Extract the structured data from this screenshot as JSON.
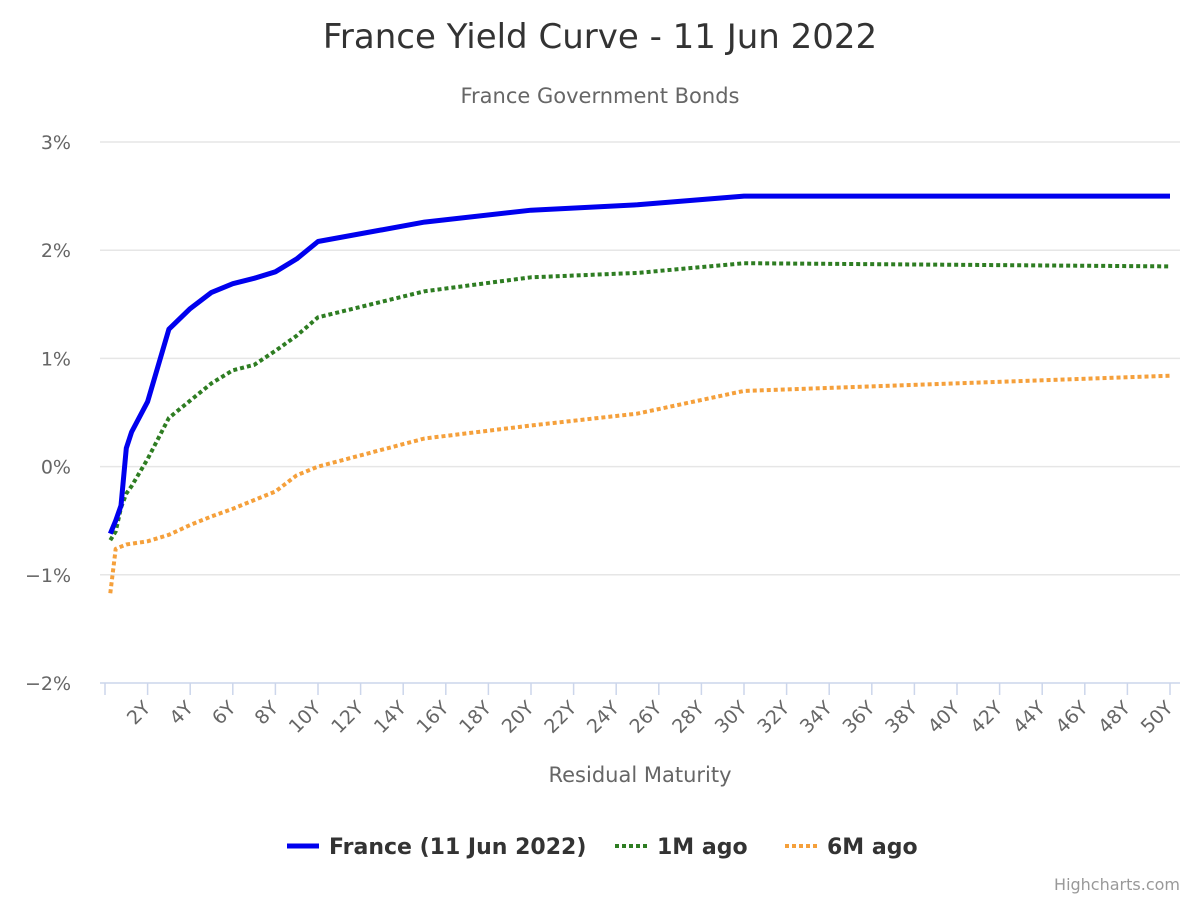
{
  "chart_data": {
    "type": "line",
    "title": "France Yield Curve - 11 Jun 2022",
    "subtitle": "France Government Bonds",
    "xlabel": "Residual Maturity",
    "ylabel": "",
    "xlim": [
      0,
      50
    ],
    "ylim": [
      -2,
      3
    ],
    "y_ticks": [
      -2,
      -1,
      0,
      1,
      2,
      3
    ],
    "y_tick_labels": [
      "−2%",
      "−1%",
      "0%",
      "1%",
      "2%",
      "3%"
    ],
    "x_ticks": [
      2,
      4,
      6,
      8,
      10,
      12,
      14,
      16,
      18,
      20,
      22,
      24,
      26,
      28,
      30,
      32,
      34,
      36,
      38,
      40,
      42,
      44,
      46,
      48,
      50
    ],
    "x_tick_labels": [
      "2Y",
      "4Y",
      "6Y",
      "8Y",
      "10Y",
      "12Y",
      "14Y",
      "16Y",
      "18Y",
      "20Y",
      "22Y",
      "24Y",
      "26Y",
      "28Y",
      "30Y",
      "32Y",
      "34Y",
      "36Y",
      "38Y",
      "40Y",
      "42Y",
      "44Y",
      "46Y",
      "48Y",
      "50Y"
    ],
    "grid": true,
    "legend_position": "bottom-center",
    "series": [
      {
        "name": "France (11 Jun 2022)",
        "color": "#0000ee",
        "style": "solid",
        "points": [
          [
            0.25,
            -0.62
          ],
          [
            0.5,
            -0.5
          ],
          [
            0.75,
            -0.36
          ],
          [
            1,
            0.17
          ],
          [
            1.25,
            0.32
          ],
          [
            2,
            0.6
          ],
          [
            3,
            1.27
          ],
          [
            4,
            1.46
          ],
          [
            5,
            1.61
          ],
          [
            6,
            1.69
          ],
          [
            7,
            1.74
          ],
          [
            8,
            1.8
          ],
          [
            9,
            1.92
          ],
          [
            10,
            2.08
          ],
          [
            15,
            2.26
          ],
          [
            20,
            2.37
          ],
          [
            25,
            2.42
          ],
          [
            30,
            2.5
          ],
          [
            50,
            2.5
          ]
        ]
      },
      {
        "name": "1M ago",
        "color": "#2e7d22",
        "style": "dotted",
        "points": [
          [
            0.25,
            -0.68
          ],
          [
            0.5,
            -0.6
          ],
          [
            0.75,
            -0.38
          ],
          [
            1,
            -0.25
          ],
          [
            1.25,
            -0.18
          ],
          [
            2,
            0.07
          ],
          [
            3,
            0.45
          ],
          [
            4,
            0.61
          ],
          [
            5,
            0.77
          ],
          [
            6,
            0.89
          ],
          [
            7,
            0.94
          ],
          [
            8,
            1.07
          ],
          [
            9,
            1.21
          ],
          [
            10,
            1.38
          ],
          [
            15,
            1.62
          ],
          [
            20,
            1.75
          ],
          [
            25,
            1.79
          ],
          [
            30,
            1.88
          ],
          [
            50,
            1.85
          ]
        ]
      },
      {
        "name": "6M ago",
        "color": "#f5a03b",
        "style": "dotted",
        "points": [
          [
            0.25,
            -1.17
          ],
          [
            0.5,
            -0.76
          ],
          [
            1,
            -0.72
          ],
          [
            2,
            -0.69
          ],
          [
            3,
            -0.63
          ],
          [
            4,
            -0.54
          ],
          [
            5,
            -0.46
          ],
          [
            6,
            -0.39
          ],
          [
            7,
            -0.31
          ],
          [
            8,
            -0.23
          ],
          [
            9,
            -0.08
          ],
          [
            10,
            0.0
          ],
          [
            15,
            0.26
          ],
          [
            20,
            0.38
          ],
          [
            25,
            0.49
          ],
          [
            30,
            0.7
          ],
          [
            50,
            0.84
          ]
        ]
      }
    ],
    "credits": "Highcharts.com"
  }
}
